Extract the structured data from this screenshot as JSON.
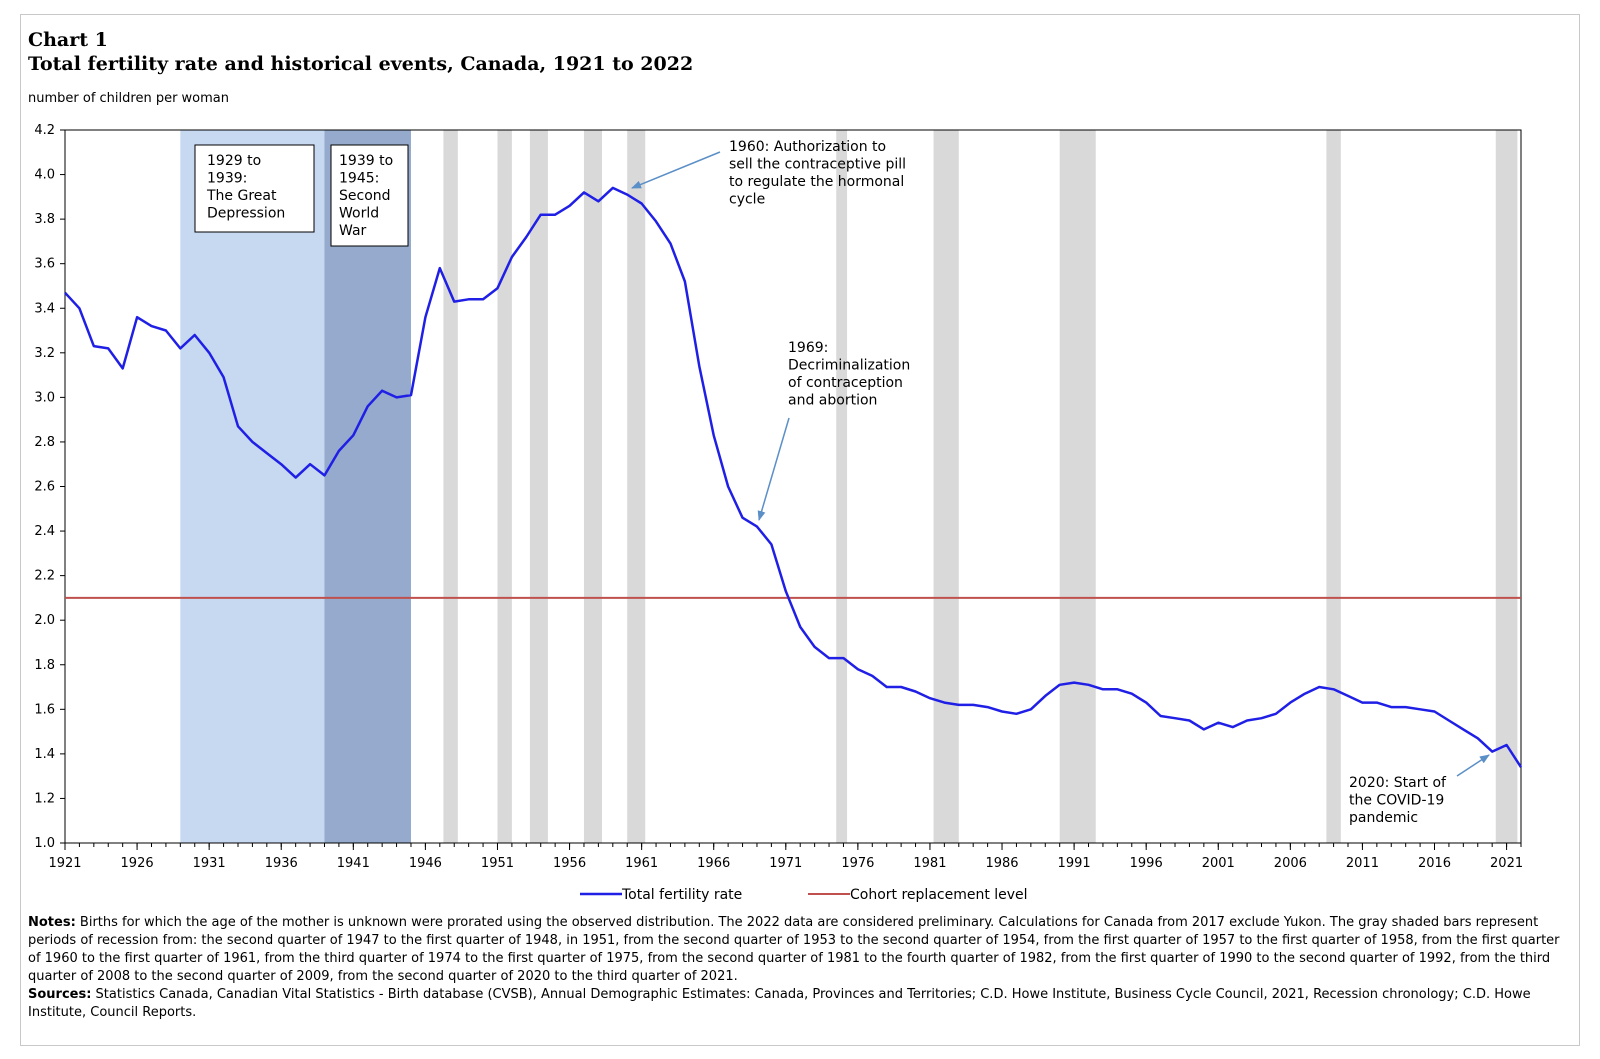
{
  "header": {
    "chart_number": "Chart 1",
    "title": "Total fertility rate and historical events, Canada, 1921 to 2022",
    "unit_label": "number of children per woman"
  },
  "legend": {
    "tfr": "Total fertility rate",
    "replacement": "Cohort replacement level"
  },
  "colors": {
    "tfr": "#1f1fe6",
    "replacement": "#c0504d",
    "depression": "#c6d9f0",
    "ww2": "#95aacc",
    "recession": "#d9d9d9"
  },
  "annotations": {
    "depression": [
      "1929 to",
      "1939:",
      "The Great",
      "Depression"
    ],
    "ww2": [
      "1939 to",
      "1945:",
      "Second",
      "World",
      "War"
    ],
    "pill": [
      "1960: Authorization to",
      "sell the contraceptive pill",
      "to regulate the hormonal",
      "cycle"
    ],
    "decrim": [
      "1969:",
      "Decriminalization",
      "of contraception",
      "and abortion"
    ],
    "covid": [
      "2020: Start of",
      "the COVID-19",
      "pandemic"
    ]
  },
  "notes": {
    "notes_label": "Notes:",
    "notes_text": " Births for which the age of the mother is unknown were prorated using the observed distribution. The 2022 data are considered preliminary. Calculations for Canada from 2017 exclude Yukon. The gray shaded bars represent periods of recession from: the second quarter of 1947 to the first quarter of 1948, in 1951, from the second quarter of 1953 to the second quarter of 1954, from the first quarter of 1957 to the first quarter of 1958, from the first quarter of 1960 to the first quarter of 1961, from the third quarter of 1974 to the first quarter of 1975, from the second quarter of 1981 to the fourth quarter of 1982, from the first quarter of 1990 to the second quarter of 1992, from the third quarter of 2008 to the second quarter of 2009, from the second quarter of 2020 to the third quarter of 2021.",
    "sources_label": "Sources:",
    "sources_text": " Statistics Canada, Canadian Vital Statistics - Birth database (CVSB), Annual Demographic Estimates: Canada, Provinces and Territories; C.D. Howe Institute, Business Cycle Council, 2021, Recession chronology; C.D. Howe Institute, Council Reports."
  },
  "chart_data": {
    "type": "line",
    "title": "Total fertility rate and historical events, Canada, 1921 to 2022",
    "ylabel": "number of children per woman",
    "xlabel": "",
    "ylim": [
      1.0,
      4.2
    ],
    "yticks": [
      "1.0",
      "1.2",
      "1.4",
      "1.6",
      "1.8",
      "2.0",
      "2.2",
      "2.4",
      "2.6",
      "2.8",
      "3.0",
      "3.2",
      "3.4",
      "3.6",
      "3.8",
      "4.0",
      "4.2"
    ],
    "xlim": [
      1921,
      2022
    ],
    "xticks": [
      "1921",
      "1926",
      "1931",
      "1936",
      "1941",
      "1946",
      "1951",
      "1956",
      "1961",
      "1966",
      "1971",
      "1976",
      "1981",
      "1986",
      "1991",
      "1996",
      "2001",
      "2006",
      "2011",
      "2016",
      "2021"
    ],
    "grid": false,
    "legend_position": "bottom",
    "series": [
      {
        "name": "Total fertility rate",
        "x": [
          1921,
          1922,
          1923,
          1924,
          1925,
          1926,
          1927,
          1928,
          1929,
          1930,
          1931,
          1932,
          1933,
          1934,
          1935,
          1936,
          1937,
          1938,
          1939,
          1940,
          1941,
          1942,
          1943,
          1944,
          1945,
          1946,
          1947,
          1948,
          1949,
          1950,
          1951,
          1952,
          1953,
          1954,
          1955,
          1956,
          1957,
          1958,
          1959,
          1960,
          1961,
          1962,
          1963,
          1964,
          1965,
          1966,
          1967,
          1968,
          1969,
          1970,
          1971,
          1972,
          1973,
          1974,
          1975,
          1976,
          1977,
          1978,
          1979,
          1980,
          1981,
          1982,
          1983,
          1984,
          1985,
          1986,
          1987,
          1988,
          1989,
          1990,
          1991,
          1992,
          1993,
          1994,
          1995,
          1996,
          1997,
          1998,
          1999,
          2000,
          2001,
          2002,
          2003,
          2004,
          2005,
          2006,
          2007,
          2008,
          2009,
          2010,
          2011,
          2012,
          2013,
          2014,
          2015,
          2016,
          2017,
          2018,
          2019,
          2020,
          2021,
          2022
        ],
        "values": [
          3.47,
          3.4,
          3.23,
          3.22,
          3.13,
          3.36,
          3.32,
          3.3,
          3.22,
          3.28,
          3.2,
          3.09,
          2.87,
          2.8,
          2.75,
          2.7,
          2.64,
          2.7,
          2.65,
          2.76,
          2.83,
          2.96,
          3.03,
          3.0,
          3.01,
          3.36,
          3.58,
          3.43,
          3.44,
          3.44,
          3.49,
          3.63,
          3.72,
          3.82,
          3.82,
          3.86,
          3.92,
          3.88,
          3.94,
          3.91,
          3.87,
          3.79,
          3.69,
          3.52,
          3.14,
          2.83,
          2.6,
          2.46,
          2.42,
          2.34,
          2.13,
          1.97,
          1.88,
          1.83,
          1.83,
          1.78,
          1.75,
          1.7,
          1.7,
          1.68,
          1.65,
          1.63,
          1.62,
          1.62,
          1.61,
          1.59,
          1.58,
          1.6,
          1.66,
          1.71,
          1.72,
          1.71,
          1.69,
          1.69,
          1.67,
          1.63,
          1.57,
          1.56,
          1.55,
          1.51,
          1.54,
          1.52,
          1.55,
          1.56,
          1.58,
          1.63,
          1.67,
          1.7,
          1.69,
          1.66,
          1.63,
          1.63,
          1.61,
          1.61,
          1.6,
          1.59,
          1.55,
          1.51,
          1.47,
          1.41,
          1.44,
          1.34
        ]
      },
      {
        "name": "Cohort replacement level",
        "x": [
          1921,
          2022
        ],
        "values": [
          2.1,
          2.1
        ]
      }
    ],
    "shaded_periods": {
      "depression": [
        1929.0,
        1939.0
      ],
      "ww2": [
        1939.0,
        1945.0
      ],
      "recessions": [
        [
          1947.25,
          1948.25
        ],
        [
          1951.0,
          1952.0
        ],
        [
          1953.25,
          1954.5
        ],
        [
          1957.0,
          1958.25
        ],
        [
          1960.0,
          1961.25
        ],
        [
          1974.5,
          1975.25
        ],
        [
          1981.25,
          1983.0
        ],
        [
          1990.0,
          1992.5
        ],
        [
          2008.5,
          2009.5
        ],
        [
          2020.25,
          2021.75
        ]
      ]
    }
  }
}
